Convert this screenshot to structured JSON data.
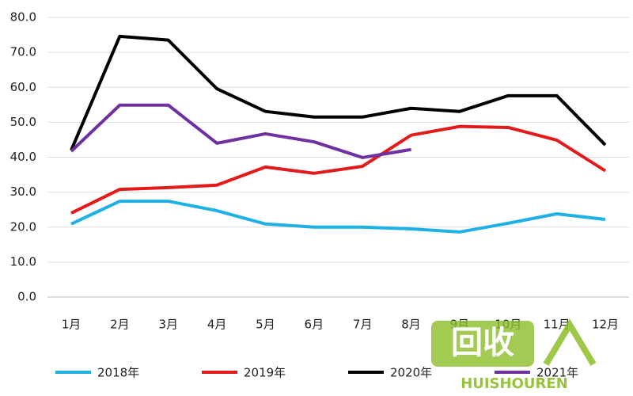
{
  "chart_data": {
    "type": "line",
    "categories": [
      "1月",
      "2月",
      "3月",
      "4月",
      "5月",
      "6月",
      "7月",
      "8月",
      "9月",
      "10月",
      "11月",
      "12月"
    ],
    "series": [
      {
        "name": "2018年",
        "color": "#1fb0e6",
        "values": [
          20.9,
          27.4,
          27.4,
          24.7,
          20.9,
          20.0,
          20.0,
          19.5,
          18.6,
          21.1,
          23.8,
          22.2
        ]
      },
      {
        "name": "2019年",
        "color": "#e41a1a",
        "values": [
          24.0,
          30.8,
          31.3,
          32.0,
          37.2,
          35.4,
          37.4,
          46.3,
          48.8,
          48.5,
          44.9,
          36.1
        ]
      },
      {
        "name": "2020年",
        "color": "#000000",
        "values": [
          42.0,
          74.6,
          73.5,
          59.6,
          53.1,
          51.5,
          51.5,
          54.0,
          53.1,
          57.6,
          57.6,
          43.5
        ]
      },
      {
        "name": "2021年",
        "color": "#7030a0",
        "values": [
          41.7,
          54.9,
          54.9,
          44.0,
          46.7,
          44.4,
          39.9,
          42.2,
          null,
          null,
          null,
          null
        ]
      }
    ],
    "ylim": [
      0,
      80
    ],
    "yticks": [
      {
        "value": 0,
        "label": "0.0"
      },
      {
        "value": 10,
        "label": "10.0"
      },
      {
        "value": 20,
        "label": "20.0"
      },
      {
        "value": 30,
        "label": "30.0"
      },
      {
        "value": 40,
        "label": "40.0"
      },
      {
        "value": 50,
        "label": "50.0"
      },
      {
        "value": 60,
        "label": "60.0"
      },
      {
        "value": 70,
        "label": "70.0"
      },
      {
        "value": 80,
        "label": "80.0"
      }
    ],
    "grid": true,
    "legend": "bottom",
    "watermark": [
      "回收",
      "HUISHOUREN"
    ]
  }
}
